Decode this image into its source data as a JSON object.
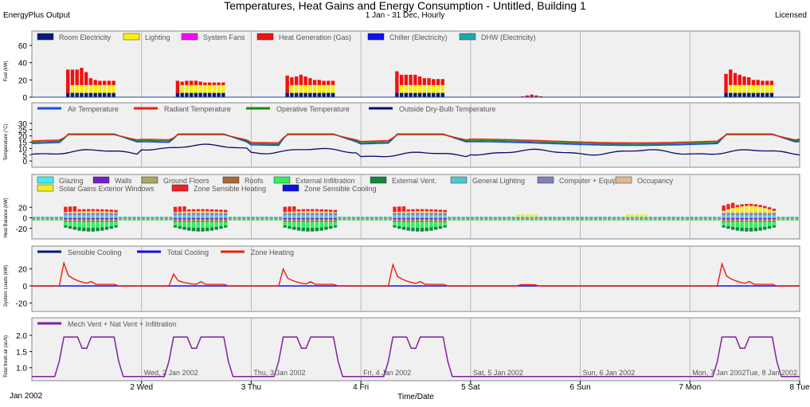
{
  "header": {
    "title": "Temperatures, Heat Gains and Energy Consumption - Untitled, Building 1",
    "subtitle": "1 Jan - 31 Dec, Hourly",
    "program": "EnergyPlus Output",
    "license": "Licensed"
  },
  "colors": {
    "panel_bg": "#f0f0f0",
    "grid": "#b8b8b8"
  },
  "chart_data": [
    {
      "type": "bar",
      "ylabel": "Fuel (kW)",
      "ylim": [
        0,
        60
      ],
      "yticks": [
        0,
        20,
        40,
        60
      ],
      "legend": [
        {
          "name": "Room Electricity",
          "color": "#0a1a7a"
        },
        {
          "name": "Lighting",
          "color": "#f7f20e"
        },
        {
          "name": "System Fans",
          "color": "#ff00ff"
        },
        {
          "name": "Heat Generation (Gas)",
          "color": "#f21010"
        },
        {
          "name": "Chiller (Electricity)",
          "color": "#1010f0"
        },
        {
          "name": "DHW (Electricity)",
          "color": "#20a8a8"
        }
      ],
      "day_profiles": [
        {
          "day": 0,
          "room_electricity": [
            5,
            5,
            5,
            5,
            5,
            5,
            5,
            5,
            5,
            5,
            5
          ],
          "lighting": [
            0,
            9,
            9,
            9,
            9,
            9,
            9,
            9,
            9,
            9,
            9
          ],
          "heating": [
            27,
            18,
            18,
            20,
            15,
            8,
            6,
            5,
            5,
            5,
            5
          ]
        },
        {
          "day": 1,
          "room_electricity": [
            5,
            5,
            5,
            5,
            5,
            5,
            5,
            5,
            5,
            5,
            5
          ],
          "lighting": [
            0,
            9,
            9,
            9,
            9,
            9,
            9,
            9,
            9,
            9,
            9
          ],
          "heating": [
            14,
            4,
            5,
            5,
            5,
            4,
            3,
            3,
            3,
            3,
            3
          ]
        },
        {
          "day": 2,
          "room_electricity": [
            5,
            5,
            5,
            5,
            5,
            5,
            5,
            5,
            5,
            5,
            5
          ],
          "lighting": [
            0,
            9,
            9,
            9,
            9,
            9,
            9,
            9,
            9,
            9,
            9
          ],
          "heating": [
            20,
            9,
            10,
            12,
            10,
            8,
            6,
            6,
            5,
            5,
            5
          ]
        },
        {
          "day": 3,
          "room_electricity": [
            5,
            5,
            5,
            5,
            5,
            5,
            5,
            5,
            5,
            5,
            5
          ],
          "lighting": [
            0,
            9,
            9,
            9,
            9,
            9,
            9,
            9,
            9,
            9,
            9
          ],
          "heating": [
            25,
            12,
            12,
            12,
            12,
            10,
            8,
            8,
            7,
            7,
            7
          ]
        },
        {
          "day": 6,
          "room_electricity": [
            5,
            5,
            5,
            5,
            5,
            5,
            5,
            5,
            5,
            5,
            5
          ],
          "lighting": [
            0,
            9,
            9,
            9,
            9,
            9,
            9,
            9,
            9,
            9,
            9
          ],
          "heating": [
            22,
            18,
            14,
            12,
            10,
            9,
            6,
            6,
            5,
            5,
            5
          ]
        }
      ],
      "weekend_heating": [
        1,
        2,
        3,
        2,
        1
      ]
    },
    {
      "type": "line",
      "ylabel": "Temperature (°C)",
      "ylim": [
        -5,
        35
      ],
      "yticks": [
        0,
        5,
        10,
        15,
        20,
        25,
        30
      ],
      "series": [
        {
          "name": "Air Temperature",
          "color": "#1050e8",
          "weekday": [
            14,
            21.5
          ],
          "weekend": 14
        },
        {
          "name": "Radiant Temperature",
          "color": "#e82010",
          "weekday": [
            16,
            21
          ],
          "weekend": 16
        },
        {
          "name": "Operative Temperature",
          "color": "#108a10",
          "weekday": [
            15,
            21.2
          ],
          "weekend": 15
        },
        {
          "name": "Outside Dry-Bulb Temperature",
          "color": "#0a0a70",
          "daily_avg": [
            7,
            11,
            8,
            5,
            7,
            7,
            7
          ]
        }
      ]
    },
    {
      "type": "bar",
      "ylabel": "Heat Balance (kW)",
      "ylim": [
        -40,
        40
      ],
      "yticks": [
        -20,
        0,
        20
      ],
      "legend": [
        {
          "name": "Glazing",
          "color": "#40f0f0"
        },
        {
          "name": "Walls",
          "color": "#7020c8"
        },
        {
          "name": "Ground Floors",
          "color": "#a8a860"
        },
        {
          "name": "Roofs",
          "color": "#a86838"
        },
        {
          "name": "External Infiltration",
          "color": "#30f060"
        },
        {
          "name": "External Vent.",
          "color": "#108840"
        },
        {
          "name": "General Lighting",
          "color": "#50c8d0"
        },
        {
          "name": "Computer + Equip",
          "color": "#8080c0"
        },
        {
          "name": "Occupancy",
          "color": "#e0b890"
        },
        {
          "name": "Solar Gains Exterior Windows",
          "color": "#f0f020"
        },
        {
          "name": "Zone Sensible Heating",
          "color": "#f02020"
        },
        {
          "name": "Zone Sensible Cooling",
          "color": "#1010e0"
        }
      ]
    },
    {
      "type": "line",
      "ylabel": "System Loads (kW)",
      "ylim": [
        -30,
        30
      ],
      "yticks": [
        -20,
        0,
        20
      ],
      "series": [
        {
          "name": "Sensible Cooling",
          "color": "#0a1a7a"
        },
        {
          "name": "Total Cooling",
          "color": "#1010e0"
        },
        {
          "name": "Zone Heating",
          "color": "#e82010"
        }
      ]
    },
    {
      "type": "line",
      "ylabel": "Total fresh air (ac/h)",
      "ylim": [
        0.6,
        2.1
      ],
      "yticks": [
        1.0,
        1.5,
        2.0
      ],
      "series": [
        {
          "name": "Mech Vent + Nat Vent + Infiltration",
          "color": "#8020a0",
          "occupied": 1.95,
          "shoulder": 1.6,
          "unoccupied": 0.73
        }
      ],
      "day_labels": [
        "Wed, 2 Jan 2002",
        "Thu, 3 Jan 2002",
        "Fri, 4 Jan 2002",
        "Sat, 5 Jan 2002",
        "Sun, 6 Jan 2002",
        "Mon, 7 Jan 2002",
        "Tue, 8 Jan 2002"
      ]
    }
  ],
  "xaxis": {
    "label": "Time/Date",
    "start_label": "Jan 2002",
    "ticks": [
      "2 Wed",
      "3 Thu",
      "4 Fri",
      "5 Sat",
      "6 Sun",
      "7 Mon",
      "8 Tue"
    ]
  }
}
